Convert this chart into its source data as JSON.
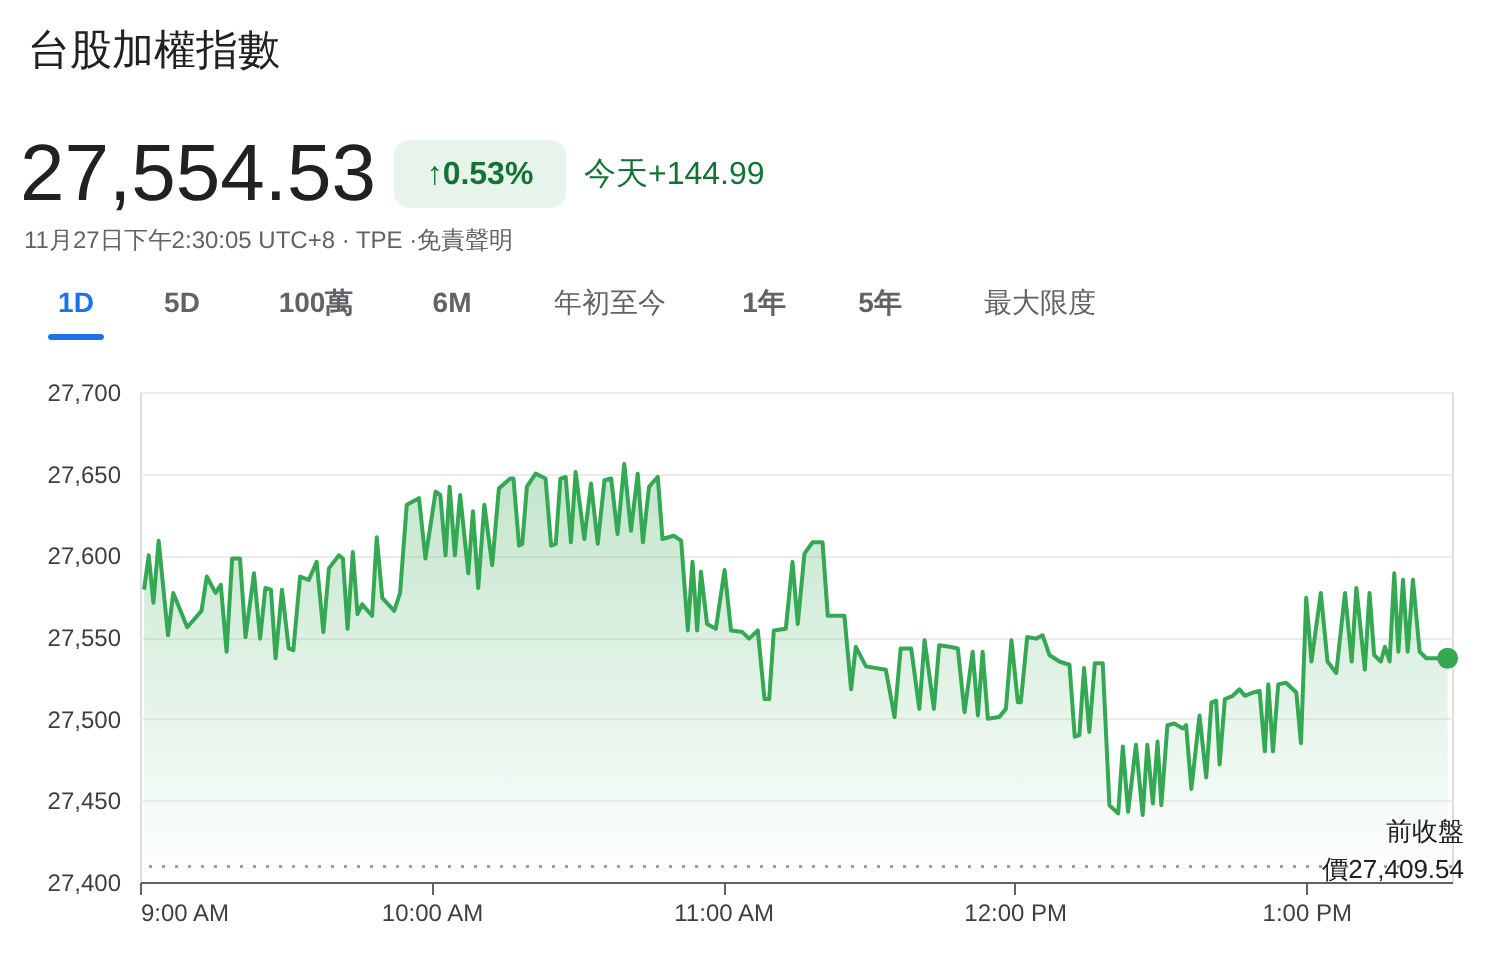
{
  "chart_data": {
    "type": "area",
    "title": "台股加權指數",
    "annotations": [
      "27,554.53",
      "↑0.53%",
      "今天+144.99",
      "11月27日下午2:30:05 UTC+8 · TPE ·免責聲明",
      "1D",
      "5D",
      "100萬",
      "6M",
      "年初至今",
      "1年",
      "5年",
      "最大限度"
    ],
    "series": [
      {
        "color": "#34a853",
        "x": [
          9.014,
          9.03,
          9.046,
          9.064,
          9.096,
          9.114,
          9.162,
          9.211,
          9.229,
          9.259,
          9.277,
          9.297,
          9.316,
          9.343,
          9.362,
          9.391,
          9.412,
          9.43,
          9.449,
          9.465,
          9.487,
          9.51,
          9.526,
          9.549,
          9.579,
          9.606,
          9.629,
          9.648,
          9.682,
          9.696,
          9.712,
          9.73,
          9.746,
          9.762,
          9.796,
          9.812,
          9.831,
          9.872,
          9.892,
          9.915,
          9.957,
          9.979,
          10.014,
          10.03,
          10.048,
          10.062,
          10.08,
          10.098,
          10.126,
          10.142,
          10.16,
          10.181,
          10.208,
          10.231,
          10.27,
          10.281,
          10.3,
          10.311,
          10.327,
          10.357,
          10.391,
          10.41,
          10.426,
          10.442,
          10.46,
          10.478,
          10.494,
          10.524,
          10.547,
          10.57,
          10.593,
          10.616,
          10.638,
          10.661,
          10.684,
          10.707,
          10.725,
          10.746,
          10.776,
          10.792,
          10.831,
          10.856,
          10.879,
          10.895,
          10.911,
          10.924,
          10.945,
          10.975,
          11.005,
          11.027,
          11.066,
          11.089,
          11.119,
          11.142,
          11.158,
          11.174,
          11.215,
          11.238,
          11.256,
          11.279,
          11.307,
          11.341,
          11.359,
          11.416,
          11.439,
          11.455,
          11.49,
          11.558,
          11.588,
          11.609,
          11.645,
          11.673,
          11.691,
          11.723,
          11.741,
          11.776,
          11.805,
          11.828,
          11.856,
          11.874,
          11.89,
          11.908,
          11.947,
          11.97,
          11.989,
          12.011,
          12.021,
          12.043,
          12.073,
          12.096,
          12.119,
          12.153,
          12.188,
          12.206,
          12.222,
          12.238,
          12.256,
          12.275,
          12.302,
          12.325,
          12.355,
          12.371,
          12.389,
          12.416,
          12.439,
          12.455,
          12.474,
          12.49,
          12.503,
          12.524,
          12.547,
          12.577,
          12.588,
          12.606,
          12.634,
          12.657,
          12.675,
          12.691,
          12.703,
          12.721,
          12.748,
          12.771,
          12.789,
          12.817,
          12.84,
          12.858,
          12.87,
          12.886,
          12.904,
          12.931,
          12.966,
          12.982,
          13.0,
          13.018,
          13.05,
          13.073,
          13.103,
          13.133,
          13.156,
          13.172,
          13.201,
          13.217,
          13.233,
          13.256,
          13.27,
          13.286,
          13.302,
          13.316,
          13.332,
          13.348,
          13.366,
          13.389,
          13.412,
          13.485
        ],
        "values": [
          27579,
          27600,
          27571,
          27609,
          27551,
          27577,
          27556,
          27566,
          27587,
          27577,
          27582,
          27541,
          27598,
          27598,
          27550,
          27589,
          27549,
          27580,
          27579,
          27537,
          27579,
          27543,
          27542,
          27587,
          27585,
          27596,
          27553,
          27592,
          27600,
          27598,
          27555,
          27602,
          27564,
          27570,
          27563,
          27611,
          27574,
          27566,
          27577,
          27631,
          27635,
          27598,
          27639,
          27637,
          27600,
          27642,
          27600,
          27637,
          27589,
          27627,
          27580,
          27631,
          27594,
          27641,
          27647,
          27647,
          27606,
          27607,
          27642,
          27650,
          27647,
          27606,
          27607,
          27647,
          27648,
          27608,
          27651,
          27610,
          27644,
          27607,
          27646,
          27647,
          27613,
          27656,
          27615,
          27650,
          27608,
          27642,
          27648,
          27610,
          27612,
          27609,
          27554,
          27596,
          27554,
          27590,
          27558,
          27555,
          27591,
          27554,
          27553,
          27549,
          27554,
          27512,
          27512,
          27554,
          27555,
          27596,
          27558,
          27601,
          27608,
          27608,
          27563,
          27563,
          27518,
          27544,
          27532,
          27530,
          27501,
          27543,
          27543,
          27506,
          27548,
          27506,
          27545,
          27544,
          27543,
          27504,
          27541,
          27502,
          27541,
          27500,
          27501,
          27506,
          27548,
          27510,
          27510,
          27550,
          27549,
          27551,
          27539,
          27535,
          27533,
          27489,
          27490,
          27531,
          27492,
          27534,
          27534,
          27447,
          27442,
          27483,
          27443,
          27484,
          27441,
          27484,
          27448,
          27486,
          27447,
          27496,
          27497,
          27494,
          27496,
          27457,
          27502,
          27464,
          27510,
          27511,
          27472,
          27512,
          27514,
          27518,
          27514,
          27516,
          27517,
          27480,
          27521,
          27480,
          27521,
          27522,
          27516,
          27485,
          27574,
          27535,
          27577,
          27535,
          27528,
          27577,
          27535,
          27580,
          27530,
          27577,
          27539,
          27535,
          27544,
          27535,
          27589,
          27541,
          27585,
          27541,
          27585,
          27541,
          27537,
          27537
        ]
      },
      {
        "type": "scatter",
        "color": "#34a853",
        "x": [
          13.485
        ],
        "values": [
          27537
        ]
      }
    ],
    "xlim": [
      9,
      13.5
    ],
    "xticks": [
      {
        "value": 9,
        "label": "9:00 AM"
      },
      {
        "value": 10,
        "label": "10:00 AM"
      },
      {
        "value": 11,
        "label": "11:00 AM"
      },
      {
        "value": 12,
        "label": "12:00 PM"
      },
      {
        "value": 13,
        "label": "1:00 PM"
      }
    ],
    "ylim": [
      27400,
      27700
    ],
    "yticks": [
      {
        "value": 27400,
        "label": "27,400"
      },
      {
        "value": 27450,
        "label": "27,450"
      },
      {
        "value": 27500,
        "label": "27,500"
      },
      {
        "value": 27550,
        "label": "27,550"
      },
      {
        "value": 27600,
        "label": "27,600"
      },
      {
        "value": 27650,
        "label": "27,650"
      },
      {
        "value": 27700,
        "label": "27,700"
      }
    ],
    "grid": "y",
    "ref_lines": [
      {
        "axis": "y",
        "value": 27409.54,
        "label": "前收盤價27,409.54",
        "color": "#9aa0a6",
        "line_style": "dotted"
      }
    ]
  }
}
